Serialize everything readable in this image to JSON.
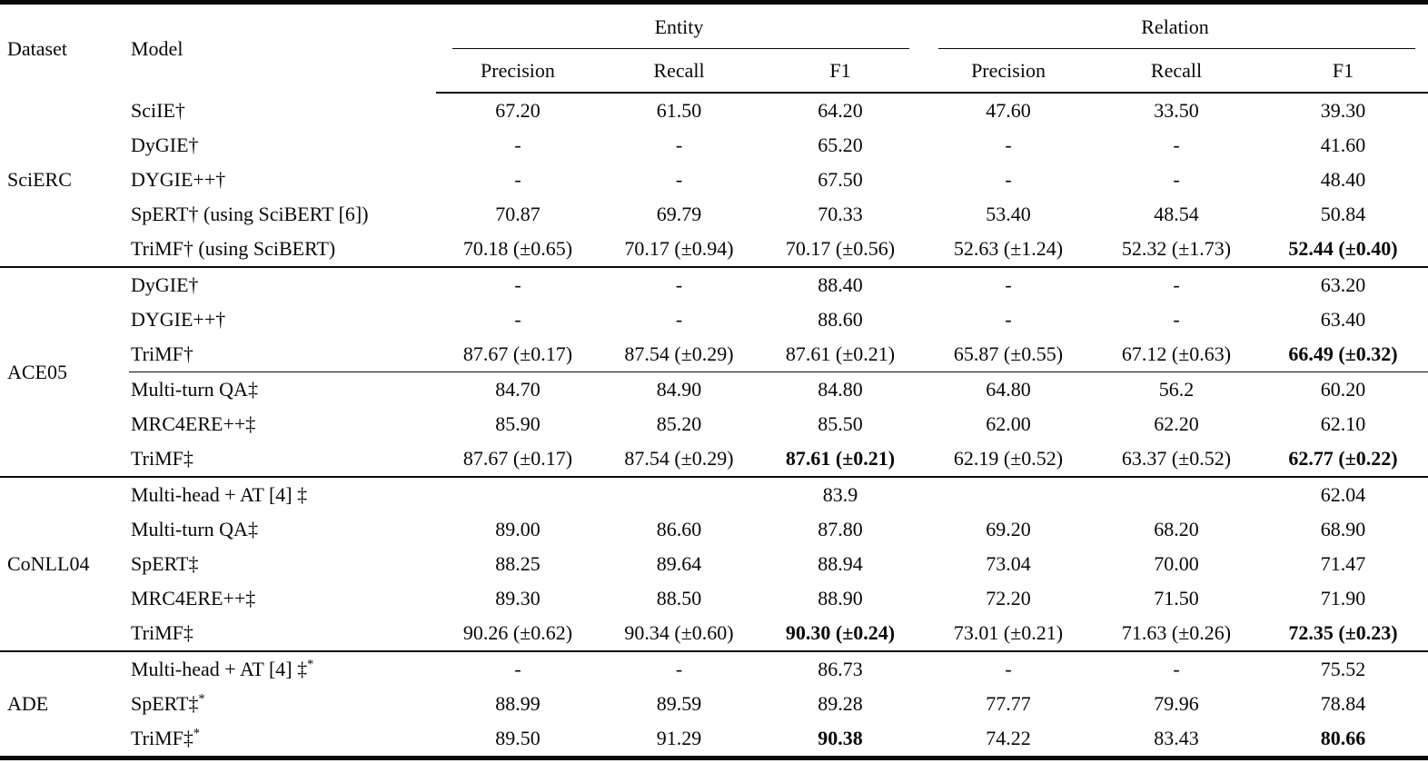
{
  "header": {
    "dataset": "Dataset",
    "model": "Model",
    "groups": [
      {
        "label": "Entity",
        "cols": [
          "Precision",
          "Recall",
          "F1"
        ]
      },
      {
        "label": "Relation",
        "cols": [
          "Precision",
          "Recall",
          "F1"
        ]
      }
    ]
  },
  "sections": [
    {
      "dataset": "SciERC",
      "blocks": [
        {
          "rows": [
            {
              "model": "SciIE†",
              "values": [
                "67.20",
                "61.50",
                "64.20",
                "47.60",
                "33.50",
                "39.30"
              ],
              "bold": []
            },
            {
              "model": "DyGIE†",
              "values": [
                "-",
                "-",
                "65.20",
                "-",
                "-",
                "41.60"
              ],
              "bold": []
            },
            {
              "model": "DYGIE++†",
              "values": [
                "-",
                "-",
                "67.50",
                "-",
                "-",
                "48.40"
              ],
              "bold": []
            },
            {
              "model": "SpERT† (using SciBERT [6])",
              "values": [
                "70.87",
                "69.79",
                "70.33",
                "53.40",
                "48.54",
                "50.84"
              ],
              "bold": []
            },
            {
              "model": "TriMF† (using SciBERT)",
              "values": [
                "70.18 (±0.65)",
                "70.17 (±0.94)",
                "70.17 (±0.56)",
                "52.63 (±1.24)",
                "52.32 (±1.73)",
                "52.44 (±0.40)"
              ],
              "bold": [
                5
              ]
            }
          ]
        }
      ]
    },
    {
      "dataset": "ACE05",
      "blocks": [
        {
          "rows": [
            {
              "model": "DyGIE†",
              "values": [
                "-",
                "-",
                "88.40",
                "-",
                "-",
                "63.20"
              ],
              "bold": []
            },
            {
              "model": "DYGIE++†",
              "values": [
                "-",
                "-",
                "88.60",
                "-",
                "-",
                "63.40"
              ],
              "bold": []
            },
            {
              "model": "TriMF†",
              "values": [
                "87.67 (±0.17)",
                "87.54 (±0.29)",
                "87.61 (±0.21)",
                "65.87 (±0.55)",
                "67.12 (±0.63)",
                "66.49 (±0.32)"
              ],
              "bold": [
                5
              ]
            }
          ]
        },
        {
          "rows": [
            {
              "model": "Multi-turn QA‡",
              "values": [
                "84.70",
                "84.90",
                "84.80",
                "64.80",
                "56.2",
                "60.20"
              ],
              "bold": []
            },
            {
              "model": "MRC4ERE++‡",
              "values": [
                "85.90",
                "85.20",
                "85.50",
                "62.00",
                "62.20",
                "62.10"
              ],
              "bold": []
            },
            {
              "model": "TriMF‡",
              "values": [
                "87.67 (±0.17)",
                "87.54 (±0.29)",
                "87.61 (±0.21)",
                "62.19 (±0.52)",
                "63.37 (±0.52)",
                "62.77 (±0.22)"
              ],
              "bold": [
                2,
                5
              ]
            }
          ]
        }
      ]
    },
    {
      "dataset": "CoNLL04",
      "blocks": [
        {
          "rows": [
            {
              "model": "Multi-head + AT [4] ‡",
              "values": [
                "",
                "",
                "83.9",
                "",
                "",
                "62.04"
              ],
              "bold": []
            },
            {
              "model": "Multi-turn QA‡",
              "values": [
                "89.00",
                "86.60",
                "87.80",
                "69.20",
                "68.20",
                "68.90"
              ],
              "bold": []
            },
            {
              "model": "SpERT‡",
              "values": [
                "88.25",
                "89.64",
                "88.94",
                "73.04",
                "70.00",
                "71.47"
              ],
              "bold": []
            },
            {
              "model": "MRC4ERE++‡",
              "values": [
                "89.30",
                "88.50",
                "88.90",
                "72.20",
                "71.50",
                "71.90"
              ],
              "bold": []
            },
            {
              "model": "TriMF‡",
              "values": [
                "90.26 (±0.62)",
                "90.34 (±0.60)",
                "90.30 (±0.24)",
                "73.01 (±0.21)",
                "71.63 (±0.26)",
                "72.35 (±0.23)"
              ],
              "bold": [
                2,
                5
              ]
            }
          ]
        }
      ]
    },
    {
      "dataset": "ADE",
      "blocks": [
        {
          "rows": [
            {
              "model": "Multi-head + AT [4] ‡",
              "model_sup": "*",
              "values": [
                "-",
                "-",
                "86.73",
                "-",
                "-",
                "75.52"
              ],
              "bold": []
            },
            {
              "model": "SpERT‡",
              "model_sup": "*",
              "values": [
                "88.99",
                "89.59",
                "89.28",
                "77.77",
                "79.96",
                "78.84"
              ],
              "bold": []
            },
            {
              "model": "TriMF‡",
              "model_sup": "*",
              "values": [
                "89.50",
                "91.29",
                "90.38",
                "74.22",
                "83.43",
                "80.66"
              ],
              "bold": [
                2,
                5
              ]
            }
          ]
        }
      ]
    }
  ]
}
